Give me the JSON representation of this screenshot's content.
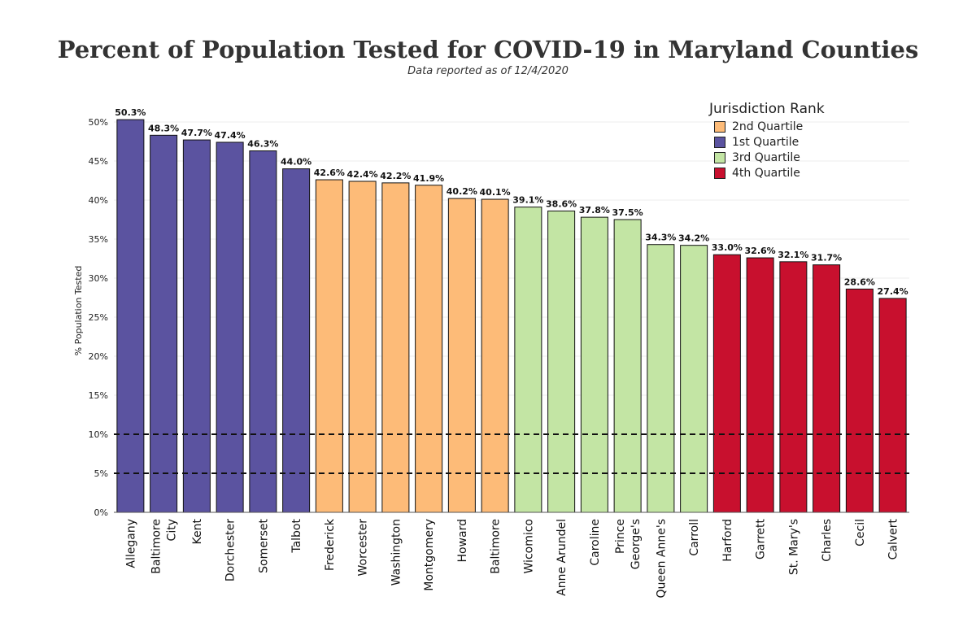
{
  "chart_data": {
    "type": "bar",
    "title": "Percent of Population Tested for COVID-19 in Maryland Counties",
    "subtitle": "Data reported as of 12/4/2020",
    "ylabel": "% Population Tested",
    "xlabel": "",
    "ylim": [
      0,
      52
    ],
    "yticks": [
      "0%",
      "5%",
      "10%",
      "15%",
      "20%",
      "25%",
      "30%",
      "35%",
      "40%",
      "45%",
      "50%"
    ],
    "reference_lines": [
      5,
      10
    ],
    "legend": {
      "title": "Jurisdiction Rank",
      "placement": "top-right",
      "entries": [
        {
          "label": "2nd Quartile",
          "color": "#fdbb78"
        },
        {
          "label": "1st Quartile",
          "color": "#5b53a0"
        },
        {
          "label": "3rd Quartile",
          "color": "#c3e5a4"
        },
        {
          "label": "4th Quartile",
          "color": "#c8102e"
        }
      ]
    },
    "categories": [
      {
        "label": "Allegany",
        "value": 50.3,
        "value_label": "50.3%",
        "quartile": 1
      },
      {
        "label": "Baltimore City",
        "value": 48.3,
        "value_label": "48.3%",
        "quartile": 1
      },
      {
        "label": "Kent",
        "value": 47.7,
        "value_label": "47.7%",
        "quartile": 1
      },
      {
        "label": "Dorchester",
        "value": 47.4,
        "value_label": "47.4%",
        "quartile": 1
      },
      {
        "label": "Somerset",
        "value": 46.3,
        "value_label": "46.3%",
        "quartile": 1
      },
      {
        "label": "Talbot",
        "value": 44.0,
        "value_label": "44.0%",
        "quartile": 1
      },
      {
        "label": "Frederick",
        "value": 42.6,
        "value_label": "42.6%",
        "quartile": 2
      },
      {
        "label": "Worcester",
        "value": 42.4,
        "value_label": "42.4%",
        "quartile": 2
      },
      {
        "label": "Washington",
        "value": 42.2,
        "value_label": "42.2%",
        "quartile": 2
      },
      {
        "label": "Montgomery",
        "value": 41.9,
        "value_label": "41.9%",
        "quartile": 2
      },
      {
        "label": "Howard",
        "value": 40.2,
        "value_label": "40.2%",
        "quartile": 2
      },
      {
        "label": "Baltimore",
        "value": 40.1,
        "value_label": "40.1%",
        "quartile": 2
      },
      {
        "label": "Wicomico",
        "value": 39.1,
        "value_label": "39.1%",
        "quartile": 3
      },
      {
        "label": "Anne Arundel",
        "value": 38.6,
        "value_label": "38.6%",
        "quartile": 3
      },
      {
        "label": "Caroline",
        "value": 37.8,
        "value_label": "37.8%",
        "quartile": 3
      },
      {
        "label": "Prince George's",
        "value": 37.5,
        "value_label": "37.5%",
        "quartile": 3
      },
      {
        "label": "Queen Anne's",
        "value": 34.3,
        "value_label": "34.3%",
        "quartile": 3
      },
      {
        "label": "Carroll",
        "value": 34.2,
        "value_label": "34.2%",
        "quartile": 3
      },
      {
        "label": "Harford",
        "value": 33.0,
        "value_label": "33.0%",
        "quartile": 4
      },
      {
        "label": "Garrett",
        "value": 32.6,
        "value_label": "32.6%",
        "quartile": 4
      },
      {
        "label": "St. Mary's",
        "value": 32.1,
        "value_label": "32.1%",
        "quartile": 4
      },
      {
        "label": "Charles",
        "value": 31.7,
        "value_label": "31.7%",
        "quartile": 4
      },
      {
        "label": "Cecil",
        "value": 28.6,
        "value_label": "28.6%",
        "quartile": 4
      },
      {
        "label": "Calvert",
        "value": 27.4,
        "value_label": "27.4%",
        "quartile": 4
      }
    ],
    "quartile_colors": {
      "1": "#5b53a0",
      "2": "#fdbb78",
      "3": "#c3e5a4",
      "4": "#c8102e"
    }
  }
}
